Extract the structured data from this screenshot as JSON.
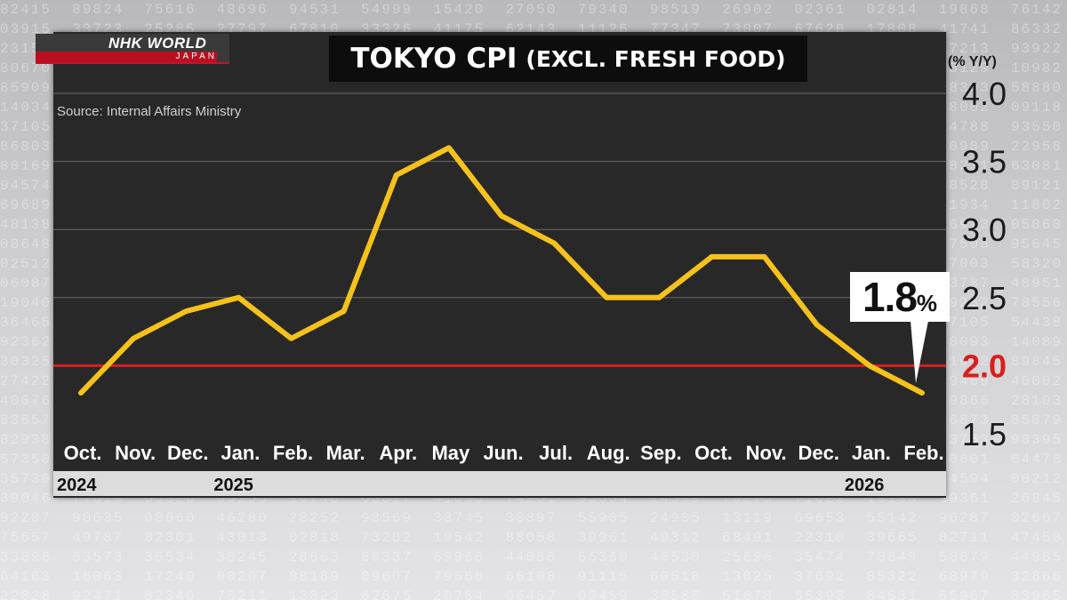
{
  "brand": {
    "logo_main": "NHK WORLD",
    "logo_sub": "JAPAN"
  },
  "title": {
    "main": "TOKYO CPI",
    "sub": "(EXCL. FRESH FOOD)"
  },
  "source": "Source: Internal Affairs Ministry",
  "unit": "(% Y/Y)",
  "colors": {
    "line": "#f5c21b",
    "reference": "#d81e1e",
    "panel": "#282828",
    "grid": "#6a6a6a"
  },
  "chart_data": {
    "type": "line",
    "x": [
      "Oct.",
      "Nov.",
      "Dec.",
      "Jan.",
      "Feb.",
      "Mar.",
      "Apr.",
      "May",
      "Jun.",
      "Jul.",
      "Aug.",
      "Sep.",
      "Oct.",
      "Nov.",
      "Dec.",
      "Jan.",
      "Feb."
    ],
    "series": [
      {
        "values": [
          1.8,
          2.2,
          2.4,
          2.5,
          2.2,
          2.4,
          3.4,
          3.6,
          3.1,
          2.9,
          2.5,
          2.5,
          2.8,
          2.8,
          2.3,
          2.0,
          1.8
        ]
      }
    ],
    "years": [
      {
        "label": "2024",
        "index": 0
      },
      {
        "label": "2025",
        "index": 3
      },
      {
        "label": "2026",
        "index": 15
      }
    ],
    "ylim": [
      1.5,
      4.0
    ],
    "yticks": [
      "1.5",
      "2.0",
      "2.5",
      "3.0",
      "3.5",
      "4.0"
    ],
    "reference_line": 2.0,
    "grid": true,
    "annotation": {
      "value": "1.8",
      "unit": "%",
      "index": 16
    }
  }
}
